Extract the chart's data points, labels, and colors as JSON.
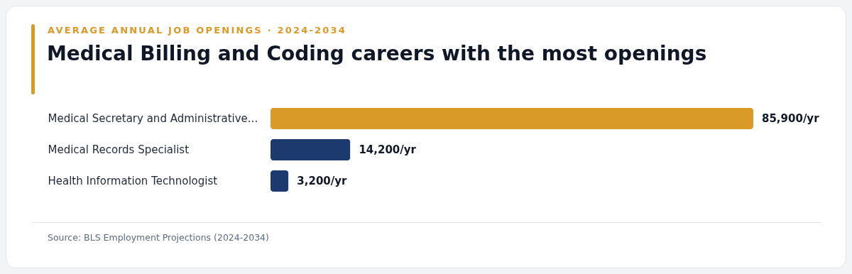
{
  "chart_data": {
    "type": "bar",
    "orientation": "horizontal",
    "subtitle": "AVERAGE ANNUAL JOB OPENINGS · 2024-2034",
    "title": "Medical Billing and Coding careers with the most openings",
    "categories": [
      "Medical Secretary and Administrative...",
      "Medical Records Specialist",
      "Health Information Technologist"
    ],
    "values": [
      85900,
      14200,
      3200
    ],
    "colors": [
      "#d99a27",
      "#1c3a6e",
      "#1c3a6e"
    ],
    "value_labels": [
      "85,900/yr",
      "14,200/yr",
      "3,200/yr"
    ],
    "annotations": [
      "Source: BLS Employment Projections (2024-2034)"
    ]
  }
}
